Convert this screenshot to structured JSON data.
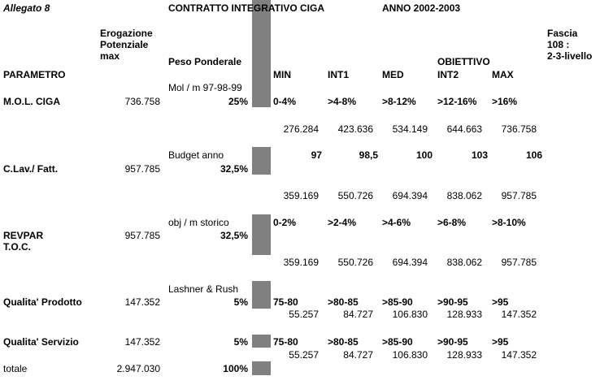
{
  "header": {
    "allegato": "Allegato 8",
    "title": "CONTRATTO INTEGRATIVO CIGA",
    "year": "ANNO 2002-2003",
    "erogazione": "Erogazione\nPotenziale\nmax",
    "fascia": "Fascia\n108 :\n2-3-livello",
    "parametro": "PARAMETRO",
    "peso": "Peso Ponderale",
    "obiettivo": "OBIETTIVO",
    "cols": [
      "MIN",
      "INT1",
      "MED",
      "INT2",
      "MAX"
    ]
  },
  "rows": {
    "mol": {
      "name": "M.O.L. CIGA",
      "erog": "736.758",
      "note": "Mol / m 97-98-99",
      "peso": "25%",
      "targets": [
        "0-4%",
        ">4-8%",
        ">8-12%",
        ">12-16%",
        ">16%"
      ],
      "amounts": [
        "276.284",
        "423.636",
        "534.149",
        "644.663",
        "736.758"
      ]
    },
    "clav": {
      "name": "C.Lav./ Fatt.",
      "erog": "957.785",
      "note": "Budget anno",
      "peso": "32,5%",
      "targets": [
        "97",
        "98,5",
        "100",
        "103",
        "106"
      ],
      "amounts": [
        "359.169",
        "550.726",
        "694.394",
        "838.062",
        "957.785"
      ]
    },
    "revpar": {
      "name": "REVPAR\nT.O.C.",
      "erog": "957.785",
      "note": "obj / m storico",
      "peso": "32,5%",
      "targets": [
        "0-2%",
        ">2-4%",
        ">4-6%",
        ">6-8%",
        ">8-10%"
      ],
      "amounts": [
        "359.169",
        "550.726",
        "694.394",
        "838.062",
        "957.785"
      ]
    },
    "qprod": {
      "name": "Qualita' Prodotto",
      "erog": "147.352",
      "note": "Lashner & Rush",
      "peso": "5%",
      "targets": [
        "75-80",
        ">80-85",
        ">85-90",
        ">90-95",
        ">95"
      ],
      "amounts": [
        "55.257",
        "84.727",
        "106.830",
        "128.933",
        "147.352"
      ]
    },
    "qserv": {
      "name": "Qualita' Servizio",
      "erog": "147.352",
      "peso": "5%",
      "targets": [
        "75-80",
        ">80-85",
        ">85-90",
        ">90-95",
        ">95"
      ],
      "amounts": [
        "55.257",
        "84.727",
        "106.830",
        "128.933",
        "147.352"
      ]
    },
    "totale": {
      "name": "totale",
      "erog": "2.947.030",
      "peso": "100%"
    }
  }
}
